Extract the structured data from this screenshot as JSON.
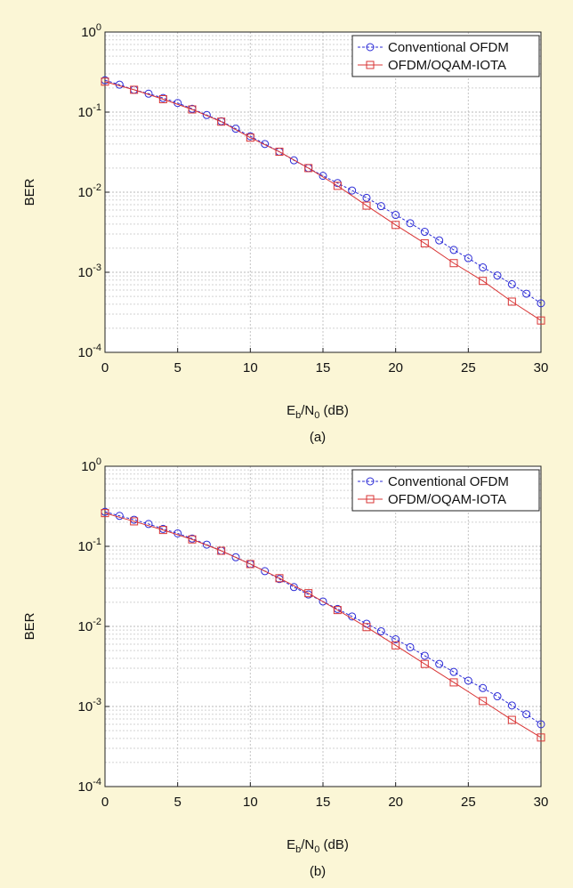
{
  "chart_data": [
    {
      "type": "line",
      "caption": "(a)",
      "xlabel_main": "E",
      "xlabel_sub1": "b",
      "xlabel_mid": "/N",
      "xlabel_sub2": "0",
      "xlabel_tail": " (dB)",
      "ylabel": "BER",
      "yscale": "log",
      "xlim": [
        0,
        30
      ],
      "ylim": [
        0.0001,
        1
      ],
      "grid": true,
      "legend_position": "top-right",
      "x_ticks": [
        "0",
        "5",
        "10",
        "15",
        "20",
        "25",
        "30"
      ],
      "y_ticks": [
        {
          "base": "10",
          "exp": "0"
        },
        {
          "base": "10",
          "exp": "-1"
        },
        {
          "base": "10",
          "exp": "-2"
        },
        {
          "base": "10",
          "exp": "-3"
        },
        {
          "base": "10",
          "exp": "-4"
        }
      ],
      "series": [
        {
          "name": "Conventional OFDM",
          "color": "#2b2bd6",
          "marker": "circle",
          "dash": true,
          "x": [
            0,
            1,
            2,
            3,
            4,
            5,
            6,
            7,
            8,
            9,
            10,
            11,
            12,
            13,
            14,
            15,
            16,
            17,
            18,
            19,
            20,
            21,
            22,
            23,
            24,
            25,
            26,
            27,
            28,
            29,
            30
          ],
          "y": [
            0.25,
            0.22,
            0.19,
            0.17,
            0.15,
            0.13,
            0.11,
            0.092,
            0.077,
            0.062,
            0.05,
            0.04,
            0.032,
            0.025,
            0.02,
            0.016,
            0.013,
            0.0105,
            0.0085,
            0.0067,
            0.0052,
            0.0041,
            0.0032,
            0.0025,
            0.0019,
            0.0015,
            0.00115,
            0.00091,
            0.00071,
            0.00054,
            0.00041
          ]
        },
        {
          "name": "OFDM/OQAM-IOTA",
          "color": "#d93434",
          "marker": "square",
          "dash": false,
          "x": [
            0,
            2,
            4,
            6,
            8,
            10,
            12,
            14,
            16,
            18,
            20,
            22,
            24,
            26,
            28,
            30
          ],
          "y": [
            0.24,
            0.19,
            0.145,
            0.108,
            0.076,
            0.048,
            0.032,
            0.02,
            0.012,
            0.0068,
            0.0039,
            0.0023,
            0.0013,
            0.00078,
            0.00043,
            0.00025
          ]
        }
      ]
    },
    {
      "type": "line",
      "caption": "(b)",
      "xlabel_main": "E",
      "xlabel_sub1": "b",
      "xlabel_mid": "/N",
      "xlabel_sub2": "0",
      "xlabel_tail": " (dB)",
      "ylabel": "BER",
      "yscale": "log",
      "xlim": [
        0,
        30
      ],
      "ylim": [
        0.0001,
        1
      ],
      "grid": true,
      "legend_position": "top-right",
      "x_ticks": [
        "0",
        "5",
        "10",
        "15",
        "20",
        "25",
        "30"
      ],
      "y_ticks": [
        {
          "base": "10",
          "exp": "0"
        },
        {
          "base": "10",
          "exp": "-1"
        },
        {
          "base": "10",
          "exp": "-2"
        },
        {
          "base": "10",
          "exp": "-3"
        },
        {
          "base": "10",
          "exp": "-4"
        }
      ],
      "series": [
        {
          "name": "Conventional OFDM",
          "color": "#2b2bd6",
          "marker": "circle",
          "dash": true,
          "x": [
            0,
            1,
            2,
            3,
            4,
            5,
            6,
            7,
            8,
            9,
            10,
            11,
            12,
            13,
            14,
            15,
            16,
            17,
            18,
            19,
            20,
            21,
            22,
            23,
            24,
            25,
            26,
            27,
            28,
            29,
            30
          ],
          "y": [
            0.27,
            0.24,
            0.215,
            0.19,
            0.165,
            0.145,
            0.125,
            0.105,
            0.088,
            0.073,
            0.06,
            0.049,
            0.039,
            0.031,
            0.025,
            0.0205,
            0.0165,
            0.0133,
            0.0108,
            0.0087,
            0.0069,
            0.0055,
            0.0043,
            0.0034,
            0.0027,
            0.0021,
            0.0017,
            0.00134,
            0.00103,
            0.0008,
            0.0006
          ]
        },
        {
          "name": "OFDM/OQAM-IOTA",
          "color": "#d93434",
          "marker": "square",
          "dash": false,
          "x": [
            0,
            2,
            4,
            6,
            8,
            10,
            12,
            14,
            16,
            18,
            20,
            22,
            24,
            26,
            28,
            30
          ],
          "y": [
            0.26,
            0.205,
            0.16,
            0.122,
            0.088,
            0.06,
            0.04,
            0.026,
            0.016,
            0.0098,
            0.0058,
            0.0034,
            0.002,
            0.00117,
            0.00068,
            0.00041
          ]
        }
      ]
    }
  ]
}
